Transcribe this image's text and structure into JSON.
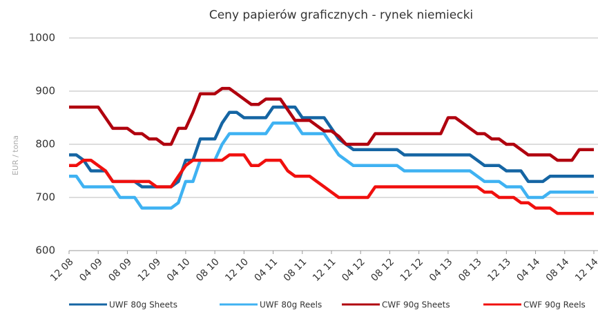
{
  "chart_data": {
    "type": "line",
    "title": "Ceny papierów graficznych - rynek niemiecki",
    "y_label": "EUR / tona",
    "categories": [
      "12 08",
      null,
      null,
      null,
      "04 09",
      null,
      null,
      null,
      "08 09",
      null,
      null,
      null,
      "12 09",
      null,
      null,
      null,
      "04 10",
      null,
      null,
      null,
      "08 10",
      null,
      null,
      null,
      "12 10",
      null,
      null,
      null,
      "04 11",
      null,
      null,
      null,
      "08 11",
      null,
      null,
      null,
      "12 11",
      null,
      null,
      null,
      "04 12",
      null,
      null,
      null,
      "08 12",
      null,
      null,
      null,
      "12 12",
      null,
      null,
      null,
      "04 13",
      null,
      null,
      null,
      "08 13",
      null,
      null,
      null,
      "12 13",
      null,
      null,
      null,
      "04 14",
      null,
      null,
      null,
      "08 14",
      null,
      null,
      null,
      "12 14"
    ],
    "series": [
      {
        "name": "UWF 80g Sheets",
        "color": "#1565a3",
        "values": [
          780,
          780,
          770,
          750,
          750,
          750,
          730,
          730,
          730,
          730,
          720,
          720,
          720,
          720,
          720,
          730,
          770,
          770,
          810,
          810,
          810,
          840,
          860,
          860,
          850,
          850,
          850,
          850,
          870,
          870,
          870,
          870,
          850,
          850,
          850,
          850,
          830,
          810,
          800,
          790,
          790,
          790,
          790,
          790,
          790,
          790,
          780,
          780,
          780,
          780,
          780,
          780,
          780,
          780,
          780,
          780,
          770,
          760,
          760,
          760,
          750,
          750,
          750,
          730,
          730,
          730,
          740,
          740,
          740,
          740,
          740,
          740,
          740
        ]
      },
      {
        "name": "UWF 80g Reels",
        "color": "#3fb2f2",
        "values": [
          740,
          740,
          720,
          720,
          720,
          720,
          720,
          700,
          700,
          700,
          680,
          680,
          680,
          680,
          680,
          690,
          730,
          730,
          770,
          770,
          770,
          800,
          820,
          820,
          820,
          820,
          820,
          820,
          840,
          840,
          840,
          840,
          820,
          820,
          820,
          820,
          800,
          780,
          770,
          760,
          760,
          760,
          760,
          760,
          760,
          760,
          750,
          750,
          750,
          750,
          750,
          750,
          750,
          750,
          750,
          750,
          740,
          730,
          730,
          730,
          720,
          720,
          720,
          700,
          700,
          700,
          710,
          710,
          710,
          710,
          710,
          710,
          710
        ]
      },
      {
        "name": "CWF 90g Sheets",
        "color": "#b0000e",
        "values": [
          870,
          870,
          870,
          870,
          870,
          850,
          830,
          830,
          830,
          820,
          820,
          810,
          810,
          800,
          800,
          830,
          830,
          860,
          895,
          895,
          895,
          905,
          905,
          895,
          885,
          875,
          875,
          885,
          885,
          885,
          865,
          845,
          845,
          845,
          835,
          825,
          825,
          815,
          800,
          800,
          800,
          800,
          820,
          820,
          820,
          820,
          820,
          820,
          820,
          820,
          820,
          820,
          850,
          850,
          840,
          830,
          820,
          820,
          810,
          810,
          800,
          800,
          790,
          780,
          780,
          780,
          780,
          770,
          770,
          770,
          790,
          790,
          790
        ]
      },
      {
        "name": "CWF 90g Reels",
        "color": "#f0100e",
        "values": [
          760,
          760,
          770,
          770,
          760,
          750,
          730,
          730,
          730,
          730,
          730,
          730,
          720,
          720,
          720,
          740,
          760,
          770,
          770,
          770,
          770,
          770,
          780,
          780,
          780,
          760,
          760,
          770,
          770,
          770,
          750,
          740,
          740,
          740,
          730,
          720,
          710,
          700,
          700,
          700,
          700,
          700,
          720,
          720,
          720,
          720,
          720,
          720,
          720,
          720,
          720,
          720,
          720,
          720,
          720,
          720,
          720,
          710,
          710,
          700,
          700,
          700,
          690,
          690,
          680,
          680,
          680,
          670,
          670,
          670,
          670,
          670,
          670
        ]
      }
    ],
    "ylim": [
      600,
      1000
    ],
    "yticks": [
      600,
      700,
      800,
      900,
      1000
    ],
    "grid": true,
    "legend": "bottom"
  }
}
